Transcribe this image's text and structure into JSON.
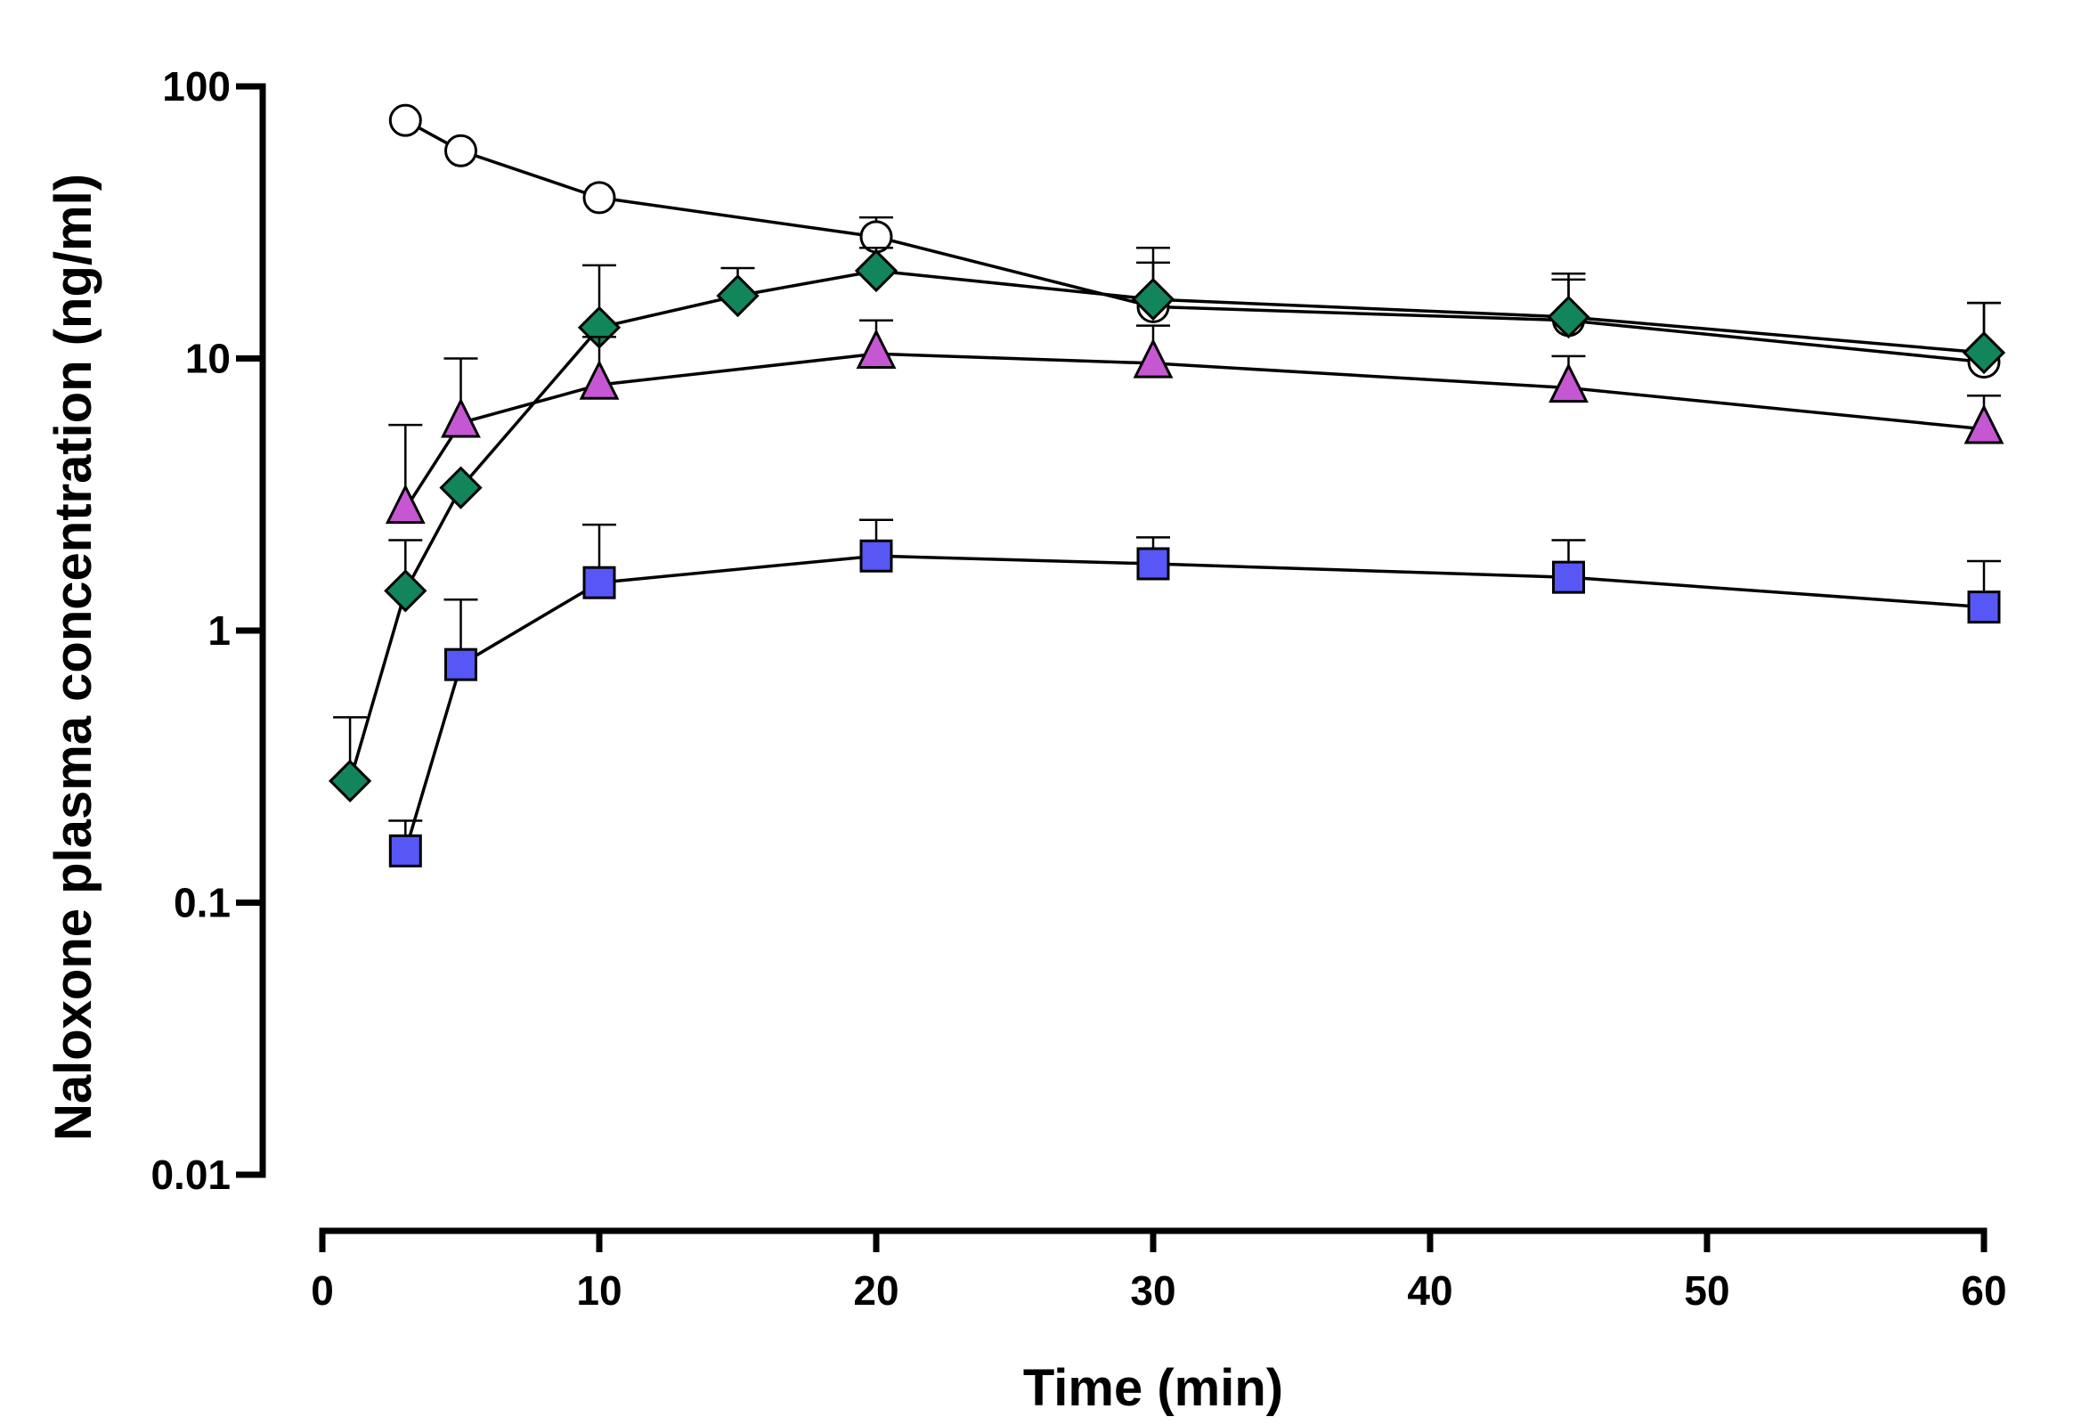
{
  "chart_data": {
    "type": "line",
    "title": "",
    "xlabel": "Time (min)",
    "ylabel": "Naloxone plasma concentration  (ng/ml)",
    "xlim": [
      0,
      60
    ],
    "ylim": [
      0.01,
      100
    ],
    "yscale": "log",
    "x_ticks": [
      0,
      10,
      20,
      30,
      40,
      50,
      60
    ],
    "x_tick_labels": [
      "0",
      "10",
      "20",
      "30",
      "40",
      "50",
      "60"
    ],
    "y_ticks": [
      0.01,
      0.1,
      1,
      10,
      100
    ],
    "y_tick_labels": [
      "0.01",
      "0.1",
      "1",
      "10",
      "100"
    ],
    "grid": false,
    "legend": "none",
    "series": [
      {
        "name": "open-circle",
        "marker": "circle",
        "color": "#ffffff",
        "x": [
          3,
          5,
          10,
          20,
          30,
          45,
          60
        ],
        "y": [
          75,
          58,
          39,
          28,
          15.5,
          13.8,
          9.7
        ],
        "err_upper": [
          null,
          null,
          null,
          33,
          22.5,
          19.5,
          16
        ]
      },
      {
        "name": "green-diamond",
        "marker": "diamond",
        "color": "#13855a",
        "x": [
          1,
          3,
          5,
          10,
          15,
          20,
          30,
          45,
          60
        ],
        "y": [
          0.28,
          1.4,
          3.35,
          13,
          17,
          21,
          16.5,
          14.2,
          10.5
        ],
        "err_upper": [
          0.48,
          2.15,
          null,
          22,
          21.5,
          25.5,
          25.5,
          20.5,
          16
        ]
      },
      {
        "name": "magenta-triangle",
        "marker": "triangle",
        "color": "#c657d3",
        "x": [
          3,
          5,
          10,
          20,
          30,
          45,
          60
        ],
        "y": [
          2.8,
          5.8,
          8,
          10.4,
          9.6,
          7.8,
          5.5
        ],
        "err_upper": [
          5.7,
          10,
          12,
          13.8,
          13.2,
          10.2,
          7.3
        ]
      },
      {
        "name": "blue-square",
        "marker": "square",
        "color": "#5757f5",
        "x": [
          3,
          5,
          10,
          20,
          30,
          45,
          60
        ],
        "y": [
          0.155,
          0.75,
          1.5,
          1.88,
          1.76,
          1.57,
          1.22
        ],
        "err_upper": [
          0.2,
          1.3,
          2.45,
          2.55,
          2.2,
          2.15,
          1.8
        ]
      }
    ]
  }
}
